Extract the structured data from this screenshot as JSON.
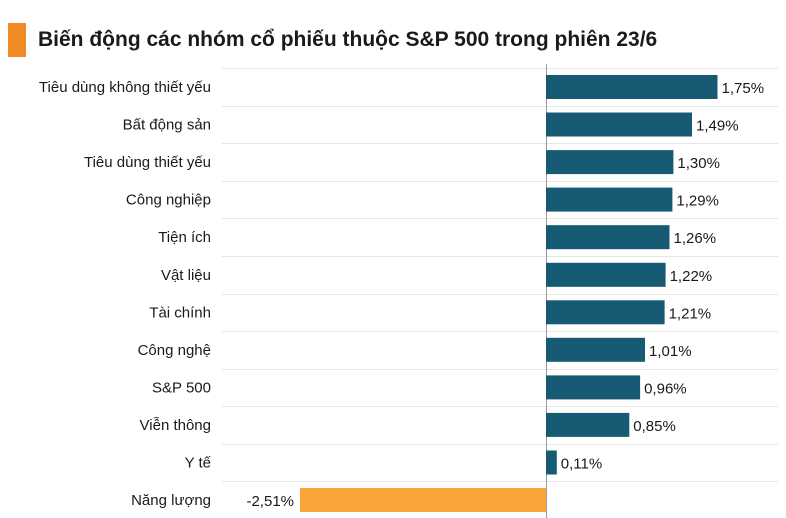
{
  "title": "Biến động các nhóm cổ phiếu thuộc S&P 500 trong phiên 23/6",
  "colors": {
    "accent": "#F08A24",
    "positive_bar": "#175A73",
    "negative_bar": "#FBA43A",
    "gridline": "#E6E6E6",
    "zero_line": "#9A9A9A",
    "text": "#1A1A1A"
  },
  "chart_data": {
    "type": "bar",
    "orientation": "horizontal",
    "title": "Biến động các nhóm cổ phiếu thuộc S&P 500 trong phiên 23/6",
    "xlabel": "",
    "ylabel": "",
    "grid": true,
    "categories": [
      "Tiêu dùng không thiết yếu",
      "Bất động sản",
      "Tiêu dùng thiết yếu",
      "Công nghiệp",
      "Tiện ích",
      "Vật liệu",
      "Tài chính",
      "Công nghệ",
      "S&P 500",
      "Viễn thông",
      "Y tế",
      "Năng lượng"
    ],
    "values": [
      1.75,
      1.49,
      1.3,
      1.29,
      1.26,
      1.22,
      1.21,
      1.01,
      0.96,
      0.85,
      0.11,
      -2.51
    ],
    "labels": [
      "1,75%",
      "1,49%",
      "1,30%",
      "1,29%",
      "1,26%",
      "1,22%",
      "1,21%",
      "1,01%",
      "0,96%",
      "0,85%",
      "0,11%",
      "-2,51%"
    ],
    "unit": "%"
  }
}
